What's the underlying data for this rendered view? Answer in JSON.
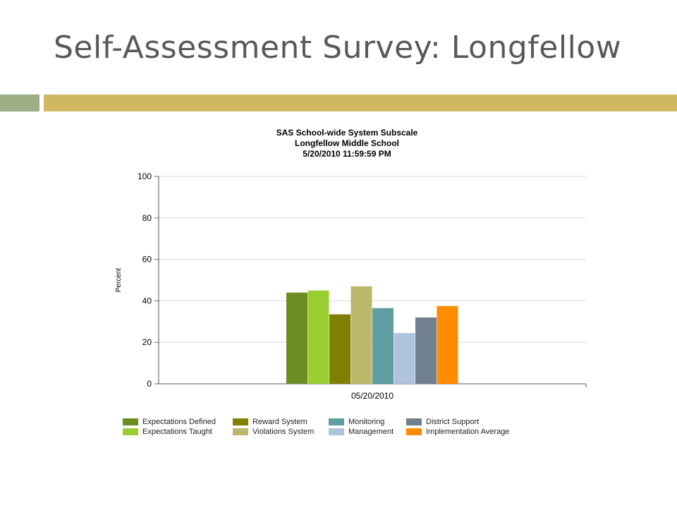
{
  "slide": {
    "title": "Self-Assessment Survey: Longfellow",
    "colors": {
      "title_text": "#595959",
      "accent_bar_left": "#9cae84",
      "accent_bar_right": "#d0b863"
    }
  },
  "chart_data": {
    "type": "bar",
    "title_lines": [
      "SAS School-wide System Subscale",
      "Longfellow Middle School",
      "5/20/2010 11:59:59 PM"
    ],
    "xlabel": "",
    "ylabel": "Percent",
    "categories": [
      "05/20/2010"
    ],
    "ylim": [
      0,
      100
    ],
    "yticks": [
      0,
      20,
      40,
      60,
      80,
      100
    ],
    "grid": true,
    "legend_position": "bottom",
    "series": [
      {
        "name": "Expectations Defined",
        "color": "#6b8e23",
        "values": [
          44
        ]
      },
      {
        "name": "Expectations Taught",
        "color": "#9acd32",
        "values": [
          45
        ]
      },
      {
        "name": "Reward System",
        "color": "#808000",
        "values": [
          33.5
        ]
      },
      {
        "name": "Violations System",
        "color": "#bdb76b",
        "values": [
          47
        ]
      },
      {
        "name": "Monitoring",
        "color": "#5f9ea0",
        "values": [
          36.5
        ]
      },
      {
        "name": "Management",
        "color": "#b0c4de",
        "values": [
          24.5
        ]
      },
      {
        "name": "District Support",
        "color": "#708090",
        "values": [
          32
        ]
      },
      {
        "name": "Implementation Average",
        "color": "#ff8c00",
        "values": [
          37.5
        ]
      }
    ]
  }
}
